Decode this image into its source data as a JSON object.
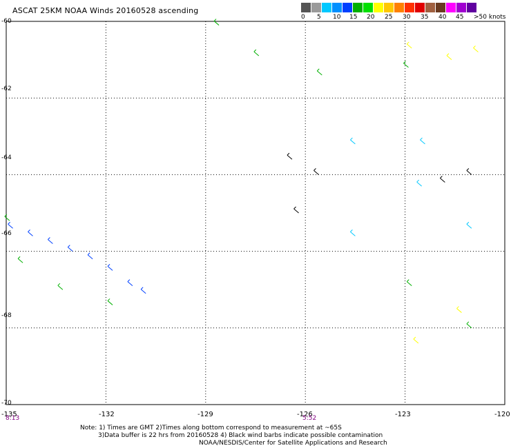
{
  "title": "ASCAT 25KM NOAA Winds 20160528 ascending",
  "colorbar": {
    "colors": [
      "#555555",
      "#9a9a9a",
      "#00c8ff",
      "#0090ff",
      "#0040ff",
      "#00b000",
      "#00e000",
      "#ffff00",
      "#ffc800",
      "#ff8000",
      "#ff3000",
      "#e00000",
      "#a06040",
      "#6a3a20",
      "#ff00ff",
      "#a000d0",
      "#6000a0"
    ],
    "labels": [
      "0",
      "5",
      "10",
      "15",
      "20",
      "25",
      "30",
      "35",
      "40",
      "45",
      ">50 knots"
    ]
  },
  "lat_labels": [
    "-60",
    "-62",
    "-64",
    "-66",
    "-68",
    "-70"
  ],
  "lon_labels": [
    "-135",
    "-132",
    "-129",
    "-126",
    "-123",
    "-120"
  ],
  "times": [
    "8:13",
    "5:52"
  ],
  "notes": [
    "Note: 1) Times are GMT 2)Times along bottom correspond to measurement at ~65S",
    "3)Data buffer is 22 hrs from 20160528 4) Black wind barbs indicate possible contamination",
    "NOAA/NESDIS/Center for Satellite Applications and Research"
  ],
  "chart_data": {
    "type": "scatter",
    "title": "ASCAT 25KM NOAA Winds 20160528 ascending",
    "xlim": [
      -135,
      -120
    ],
    "ylim": [
      -70,
      -60
    ],
    "xticks": [
      -135,
      -132,
      -129,
      -126,
      -123,
      -120
    ],
    "yticks": [
      -60,
      -62,
      -64,
      -66,
      -68,
      -70
    ],
    "grid": true,
    "series": [
      {
        "color": "#0040ff",
        "points": [
          [
            -134.8,
            -65.4
          ],
          [
            -134.2,
            -65.6
          ],
          [
            -133.6,
            -65.8
          ],
          [
            -133.0,
            -66.0
          ],
          [
            -132.4,
            -66.2
          ],
          [
            -131.8,
            -66.5
          ],
          [
            -131.2,
            -66.9
          ],
          [
            -130.8,
            -67.1
          ]
        ]
      },
      {
        "color": "#00b000",
        "points": [
          [
            -134.9,
            -65.2
          ],
          [
            -134.5,
            -66.3
          ],
          [
            -133.3,
            -67.0
          ],
          [
            -131.8,
            -67.4
          ],
          [
            -128.6,
            -60.1
          ],
          [
            -127.4,
            -60.9
          ],
          [
            -125.5,
            -61.4
          ],
          [
            -122.9,
            -61.2
          ],
          [
            -122.8,
            -66.9
          ],
          [
            -121.0,
            -68.0
          ]
        ]
      },
      {
        "color": "#00c8ff",
        "points": [
          [
            -124.5,
            -63.2
          ],
          [
            -122.5,
            -64.3
          ],
          [
            -124.5,
            -65.6
          ],
          [
            -121.0,
            -65.4
          ],
          [
            -122.4,
            -63.2
          ]
        ]
      },
      {
        "color": "#ffff00",
        "points": [
          [
            -122.8,
            -60.7
          ],
          [
            -121.6,
            -61.0
          ],
          [
            -120.8,
            -60.8
          ],
          [
            -121.3,
            -67.6
          ],
          [
            -122.6,
            -68.4
          ]
        ]
      },
      {
        "color": "#000000",
        "points": [
          [
            -126.4,
            -63.6
          ],
          [
            -125.6,
            -64.0
          ],
          [
            -126.2,
            -65.0
          ],
          [
            -121.8,
            -64.2
          ],
          [
            -121.0,
            -64.0
          ]
        ]
      }
    ]
  }
}
